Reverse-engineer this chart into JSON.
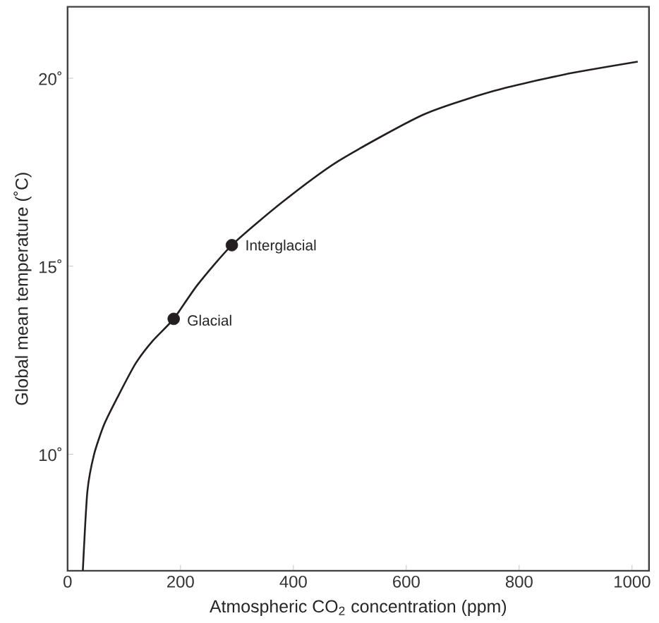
{
  "chart_data": {
    "type": "line",
    "xlabel": "Atmospheric CO$_{2}$ concentration  (ppm)",
    "ylabel": "Global mean temperature (˚C)",
    "xlim": [
      0,
      1030
    ],
    "ylim": [
      6.9,
      21.9
    ],
    "xticks": [
      0,
      200,
      400,
      600,
      800,
      1000
    ],
    "yticks": [
      {
        "value": 10,
        "label": "10˚"
      },
      {
        "value": 15,
        "label": "15˚"
      },
      {
        "value": 20,
        "label": "20˚"
      }
    ],
    "grid": false,
    "series": [
      {
        "color": "#231f20",
        "marker": "none",
        "line_style": "solid",
        "x": [
          27,
          35,
          47,
          65,
          88,
          120,
          150,
          188,
          230,
          291,
          380,
          480,
          630,
          755,
          880,
          1010
        ],
        "values": [
          6.9,
          9.0,
          10.0,
          10.8,
          11.5,
          12.4,
          13.0,
          13.6,
          14.5,
          15.56,
          16.7,
          17.8,
          19.03,
          19.66,
          20.1,
          20.44
        ]
      },
      {
        "type": "scatter",
        "color": "#231f20",
        "marker": "circle",
        "x": [
          188,
          291
        ],
        "values": [
          13.6,
          15.56
        ]
      }
    ],
    "annotations": [
      {
        "text": "Glacial",
        "x": 188,
        "y": 13.6
      },
      {
        "text": "Interglacial",
        "x": 291,
        "y": 15.56
      }
    ]
  }
}
